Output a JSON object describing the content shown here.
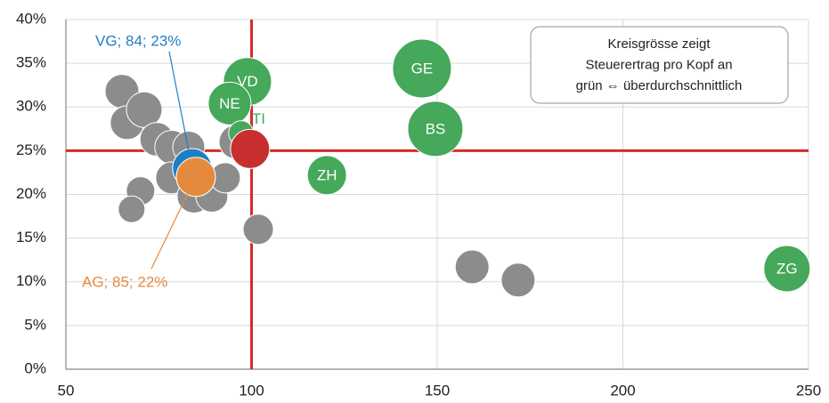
{
  "chart_data": {
    "type": "bubble",
    "xlim": [
      50,
      250
    ],
    "xticks": [
      50,
      100,
      150,
      200,
      250
    ],
    "ylim": [
      0,
      40
    ],
    "yticks": [
      {
        "value": 0,
        "label": "0%"
      },
      {
        "value": 5,
        "label": "5%"
      },
      {
        "value": 10,
        "label": "10%"
      },
      {
        "value": 15,
        "label": "15%"
      },
      {
        "value": 20,
        "label": "20%"
      },
      {
        "value": 25,
        "label": "25%"
      },
      {
        "value": 30,
        "label": "30%"
      },
      {
        "value": 35,
        "label": "35%"
      },
      {
        "value": 40,
        "label": "40%"
      }
    ],
    "grid": true,
    "reference_lines": {
      "x": 100,
      "y": 25,
      "color": "#d42a2a"
    },
    "note": [
      "Kreisgrösse zeigt",
      "Steuerertrag pro Kopf an",
      "grün ⇔ überdurchschnittlich"
    ],
    "series": [
      {
        "color": "#8c8c8c",
        "x": [
          65.1,
          66.5,
          71.1,
          74.5,
          78.5,
          83.1,
          70.1,
          67.7,
          78.5,
          84.5,
          89.3,
          92.9,
          95.8,
          101.8,
          159.4,
          171.8
        ],
        "values": [
          31.8,
          28.2,
          29.7,
          26.3,
          25.4,
          25.4,
          20.4,
          18.3,
          21.9,
          19.8,
          19.8,
          21.9,
          26.0,
          16.0,
          11.7,
          10.2
        ],
        "sizes": [
          19,
          19,
          20,
          19,
          19,
          18,
          16,
          15,
          18,
          19,
          18,
          17,
          19,
          17,
          19,
          19
        ]
      },
      {
        "color": "#45a85a",
        "x": [
          98.9,
          94.1,
          97.2,
          145.9,
          149.5,
          120.3,
          244.2
        ],
        "values": [
          32.9,
          30.4,
          27.0,
          34.4,
          27.5,
          22.2,
          11.5
        ],
        "sizes": [
          27,
          24,
          14,
          33,
          31,
          22,
          26
        ],
        "labels": [
          "VD",
          "NE",
          "TI",
          "GE",
          "BS",
          "ZH",
          "ZG"
        ]
      },
      {
        "color": "#c8302f",
        "x": [
          99.6
        ],
        "values": [
          25.2
        ],
        "sizes": [
          22
        ]
      },
      {
        "color": "#1f7fc4",
        "x": [
          84
        ],
        "values": [
          23
        ],
        "sizes": [
          22
        ],
        "labels": [
          "VG; 84; 23%"
        ]
      },
      {
        "color": "#e58a3c",
        "x": [
          85
        ],
        "values": [
          22
        ],
        "sizes": [
          22
        ],
        "labels": [
          "AG; 85; 22%"
        ]
      }
    ]
  }
}
